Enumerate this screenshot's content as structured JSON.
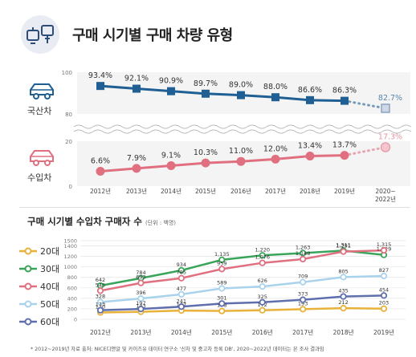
{
  "header": {
    "title": "구매 시기별 구매 차량 유형"
  },
  "top_chart": {
    "domestic_label": "국산차",
    "import_label": "수입차"
  },
  "bottom_chart": {
    "title": "구매 시기별 수입차 구매자 수",
    "unit": "(단위 : 백명)"
  },
  "footnote": "* 2012~2019년 자료 출처: NICE디앤알 및 카이즈유 데이터 연구소 '신차 및 중고차 등록 DB', 2020~2022년 데이터는 본 조사 결과임",
  "colors": {
    "domestic": "#1f5f93",
    "import": "#e07080",
    "bg_band": "#f2f2f2"
  },
  "chart_data": [
    {
      "type": "line",
      "title": "구매 시기별 구매 차량 유형",
      "categories": [
        "2012년",
        "2013년",
        "2014년",
        "2015년",
        "2016년",
        "2017년",
        "2018년",
        "2019년",
        "2020~2022년"
      ],
      "y_ticks_top": [
        "100",
        "80"
      ],
      "y_ticks_bottom": [
        "20",
        "0"
      ],
      "series": [
        {
          "name": "국산차",
          "values": [
            93.4,
            92.1,
            90.9,
            89.7,
            89.0,
            88.0,
            86.6,
            86.3,
            82.7
          ],
          "labels": [
            "93.4%",
            "92.1%",
            "90.9%",
            "89.7%",
            "89.0%",
            "88.0%",
            "86.6%",
            "86.3%",
            "82.7%"
          ],
          "color": "#1f5f93",
          "projected_last": true
        },
        {
          "name": "수입차",
          "values": [
            6.6,
            7.9,
            9.1,
            10.3,
            11.0,
            12.0,
            13.4,
            13.7,
            17.3
          ],
          "labels": [
            "6.6%",
            "7.9%",
            "9.1%",
            "10.3%",
            "11.0%",
            "12.0%",
            "13.4%",
            "13.7%",
            "17.3%"
          ],
          "color": "#e07080",
          "projected_last": true
        }
      ],
      "grid": true,
      "axis_break": true
    },
    {
      "type": "line",
      "title": "구매 시기별 수입차 구매자 수",
      "categories": [
        "2012년",
        "2013년",
        "2014년",
        "2015년",
        "2016년",
        "2017년",
        "2018년",
        "2019년"
      ],
      "y_ticks": [
        "0",
        "200",
        "400",
        "600",
        "800",
        "1000",
        "1200",
        "1400",
        "1500"
      ],
      "ylim": [
        0,
        1500
      ],
      "series": [
        {
          "name": "20대",
          "color": "#e8b23a",
          "values": [
            130,
            143,
            167,
            158,
            172,
            193,
            212,
            203
          ]
        },
        {
          "name": "30대",
          "color": "#3aa55a",
          "values": [
            642,
            784,
            934,
            1135,
            1220,
            1263,
            1311,
            1229
          ]
        },
        {
          "name": "40대",
          "color": "#e07080",
          "values": [
            545,
            693,
            785,
            959,
            1076,
            1148,
            1291,
            1315
          ]
        },
        {
          "name": "50대",
          "color": "#a9d3ec",
          "values": [
            328,
            396,
            477,
            589,
            626,
            709,
            805,
            827
          ]
        },
        {
          "name": "60대",
          "color": "#5f6fae",
          "values": [
            173,
            197,
            241,
            301,
            325,
            373,
            435,
            454
          ]
        }
      ],
      "labels": {
        "20대": [
          "130",
          "143",
          "167",
          "158",
          "172",
          "193",
          "212",
          "203"
        ],
        "30대": [
          "642",
          "784",
          "934",
          "1,135",
          "1,220",
          "1,263",
          "1,311",
          "1,229"
        ],
        "40대": [
          "545",
          "693",
          "785",
          "959",
          "1,076",
          "1,148",
          "1,291",
          "1,315"
        ],
        "50대": [
          "328",
          "396",
          "477",
          "589",
          "626",
          "709",
          "805",
          "827"
        ],
        "60대": [
          "173",
          "197",
          "241",
          "301",
          "325",
          "373",
          "435",
          "454"
        ]
      },
      "legend_position": "left",
      "grid": true
    }
  ]
}
